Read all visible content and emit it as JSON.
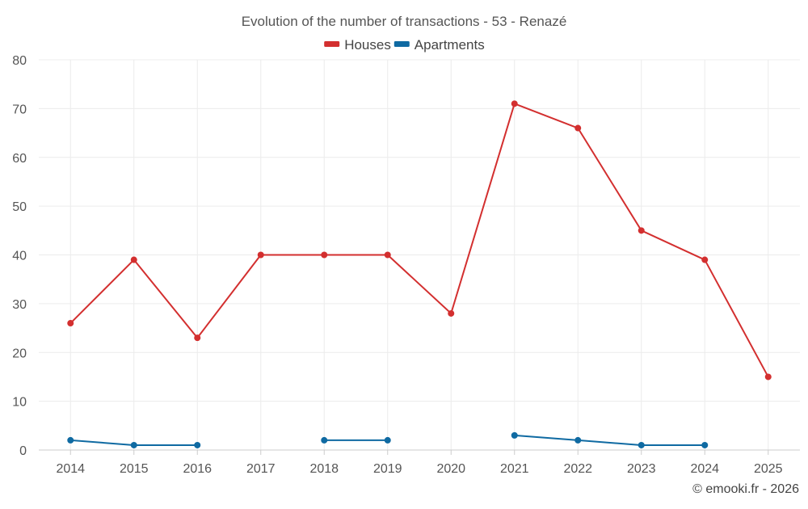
{
  "chart_data": {
    "type": "line",
    "title": "Evolution of the number of transactions - 53 - Renazé",
    "xlabel": "",
    "ylabel": "",
    "categories": [
      "2014",
      "2015",
      "2016",
      "2017",
      "2018",
      "2019",
      "2020",
      "2021",
      "2022",
      "2023",
      "2024",
      "2025"
    ],
    "ylim": [
      0,
      80
    ],
    "yticks": [
      0,
      10,
      20,
      30,
      40,
      50,
      60,
      70,
      80
    ],
    "grid": true,
    "legend_position": "top-center",
    "series": [
      {
        "name": "Houses",
        "color": "#d32f2f",
        "values": [
          26,
          39,
          23,
          40,
          40,
          40,
          28,
          71,
          66,
          45,
          39,
          15
        ]
      },
      {
        "name": "Apartments",
        "color": "#0f6aa2",
        "values": [
          2,
          1,
          1,
          null,
          2,
          2,
          null,
          3,
          2,
          1,
          1,
          null
        ]
      }
    ],
    "credit": "© emooki.fr - 2026"
  }
}
